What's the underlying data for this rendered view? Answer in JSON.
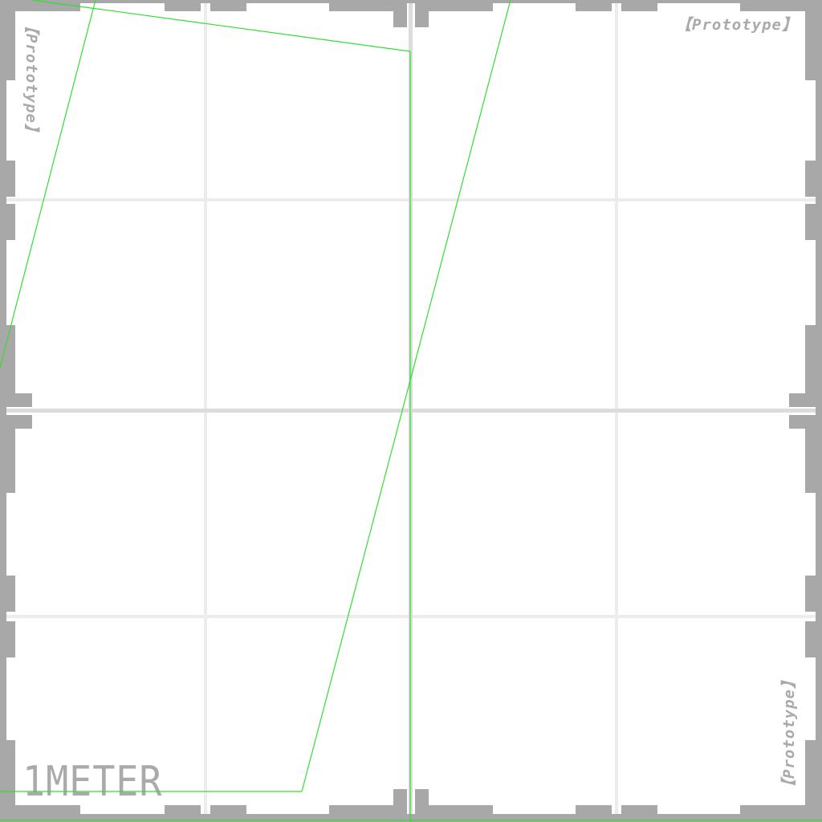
{
  "texture": {
    "border_color": "#a8a8a8",
    "grid_color": "#ececec",
    "center_line_color": "#dcdcdc",
    "background_color": "#ffffff"
  },
  "labels": {
    "prototype_top_right": "【Prototype】",
    "prototype_top_left": "【Prototype】",
    "prototype_bottom_right": "【Prototype】",
    "scale": "1METER"
  },
  "overlay": {
    "wireframe_color": "#33dd33"
  }
}
